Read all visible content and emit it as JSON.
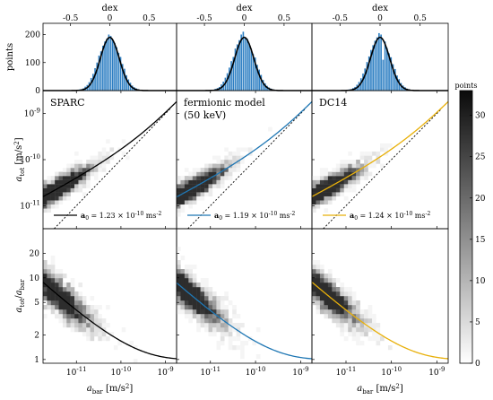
{
  "figure": {
    "colorbar": {
      "label": "points",
      "ticks": [
        0,
        5,
        10,
        15,
        20,
        25,
        30
      ],
      "range": [
        0,
        33
      ]
    }
  },
  "chart_data": [
    {
      "type": "bar",
      "panel": "histogram",
      "columns": [
        "SPARC",
        "fermionic model (50 keV)",
        "DC14"
      ],
      "xlabel": "dex",
      "ylabel": "points",
      "xlim": [
        -0.85,
        0.85
      ],
      "ylim": [
        0,
        240
      ],
      "xticks": [
        -0.5,
        0,
        0.5
      ],
      "xtick_labels": [
        "-0.5",
        "0",
        "0.5"
      ],
      "yticks": [
        0,
        100,
        200
      ],
      "yticks_labels": [
        "0",
        "100",
        "200"
      ],
      "bin_width": 0.025,
      "gaussian_fit": {
        "amplitude": 190,
        "mean": 0.0,
        "sigma": 0.12
      },
      "series": [
        {
          "column": "SPARC",
          "curve_color": "#000000",
          "bar_color": "#2e7fc3",
          "bin_centers": [
            -0.4375,
            -0.4125,
            -0.3875,
            -0.3625,
            -0.3375,
            -0.3125,
            -0.2875,
            -0.2625,
            -0.2375,
            -0.2125,
            -0.1875,
            -0.1625,
            -0.1375,
            -0.1125,
            -0.0875,
            -0.0625,
            -0.0375,
            -0.0125,
            0.0125,
            0.0375,
            0.0625,
            0.0875,
            0.1125,
            0.1375,
            0.1625,
            0.1875,
            0.2125,
            0.2375,
            0.2625,
            0.2875,
            0.3125,
            0.3375,
            0.3625,
            0.3875,
            0.4125,
            0.4375
          ],
          "counts": [
            1,
            2,
            4,
            5,
            8,
            14,
            20,
            30,
            45,
            60,
            80,
            100,
            125,
            140,
            160,
            175,
            185,
            200,
            195,
            180,
            170,
            155,
            135,
            120,
            95,
            78,
            55,
            40,
            28,
            18,
            12,
            8,
            5,
            3,
            2,
            1
          ]
        },
        {
          "column": "fermionic model (50 keV)",
          "curve_color": "#000000",
          "bar_color": "#2e7fc3",
          "bin_centers": [
            -0.4375,
            -0.4125,
            -0.3875,
            -0.3625,
            -0.3375,
            -0.3125,
            -0.2875,
            -0.2625,
            -0.2375,
            -0.2125,
            -0.1875,
            -0.1625,
            -0.1375,
            -0.1125,
            -0.0875,
            -0.0625,
            -0.0375,
            -0.0125,
            0.0125,
            0.0375,
            0.0625,
            0.0875,
            0.1125,
            0.1375,
            0.1625,
            0.1875,
            0.2125,
            0.2375,
            0.2625,
            0.2875,
            0.3125,
            0.3375,
            0.3625,
            0.3875,
            0.4125,
            0.4375
          ],
          "counts": [
            1,
            2,
            3,
            6,
            9,
            13,
            22,
            32,
            46,
            62,
            82,
            105,
            120,
            150,
            165,
            180,
            200,
            210,
            190,
            185,
            168,
            150,
            130,
            118,
            92,
            75,
            56,
            38,
            26,
            17,
            11,
            7,
            4,
            3,
            1,
            1
          ]
        },
        {
          "column": "DC14",
          "curve_color": "#000000",
          "bar_color": "#2e7fc3",
          "bin_centers": [
            -0.4375,
            -0.4125,
            -0.3875,
            -0.3625,
            -0.3375,
            -0.3125,
            -0.2875,
            -0.2625,
            -0.2375,
            -0.2125,
            -0.1875,
            -0.1625,
            -0.1375,
            -0.1125,
            -0.0875,
            -0.0625,
            -0.0375,
            -0.0125,
            0.0125,
            0.0375,
            0.0625,
            0.0875,
            0.1125,
            0.1375,
            0.1625,
            0.1875,
            0.2125,
            0.2375,
            0.2625,
            0.2875,
            0.3125,
            0.3375,
            0.3625,
            0.3875,
            0.4125,
            0.4375
          ],
          "counts": [
            1,
            2,
            4,
            5,
            9,
            13,
            21,
            31,
            44,
            61,
            79,
            102,
            122,
            145,
            162,
            178,
            190,
            205,
            200,
            110,
            175,
            152,
            133,
            119,
            94,
            77,
            54,
            41,
            27,
            18,
            12,
            7,
            5,
            3,
            2,
            1
          ]
        }
      ]
    },
    {
      "type": "heatmap",
      "panel": "acceleration relation",
      "columns": [
        "SPARC",
        "fermionic model\n(50 keV)",
        "DC14"
      ],
      "xlabel_var": "a",
      "xlabel_sub": "bar",
      "xlabel_unit": "[m/s",
      "ylabel_var": "a",
      "ylabel_sub": "tot",
      "ylabel_unit": "[m/s",
      "x_log_range": [
        -11.75,
        -8.75
      ],
      "y_log_range": [
        -11.5,
        -8.5
      ],
      "yticks": [
        "10^-11",
        "10^-10",
        "10^-9"
      ],
      "one_to_one_line": true,
      "fit_curves": [
        {
          "column": "SPARC",
          "color": "#000000",
          "a0": "1.23 × 10",
          "exponent": "-10",
          "unit": "ms",
          "unit_exp": "-2"
        },
        {
          "column": "fermionic model (50 keV)",
          "color": "#1f77b4",
          "a0": "1.19 × 10",
          "exponent": "-10",
          "unit": "ms",
          "unit_exp": "-2"
        },
        {
          "column": "DC14",
          "color": "#e8b00a",
          "a0": "1.24 × 10",
          "exponent": "-10",
          "unit": "ms",
          "unit_exp": "-2"
        }
      ],
      "a0_label": "a"
    },
    {
      "type": "heatmap",
      "panel": "acceleration ratio",
      "xlabel_var": "a",
      "xlabel_sub": "bar",
      "ylabel_var": "a",
      "ylabel_sub": "tot",
      "ylabel_sub2": "bar",
      "x_log_range": [
        -11.75,
        -8.75
      ],
      "y_range": [
        0.9,
        40
      ],
      "yticks": [
        1,
        2,
        5,
        10,
        20
      ],
      "ytick_labels": [
        "1",
        "2",
        "5",
        "10",
        "20"
      ],
      "xticks": [
        "10^-11",
        "10^-10",
        "10^-9"
      ]
    }
  ]
}
